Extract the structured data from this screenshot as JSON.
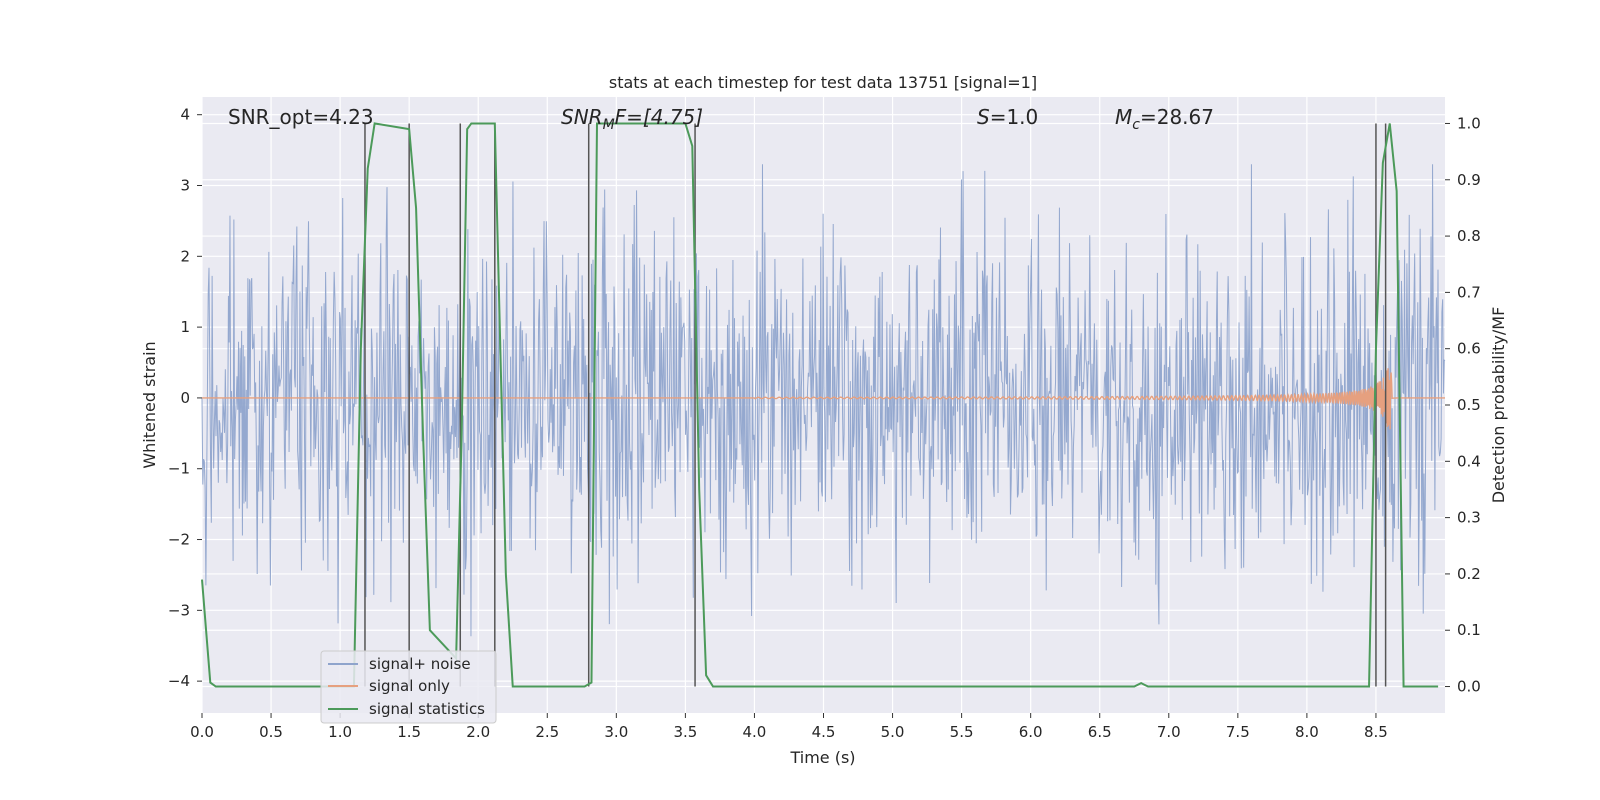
{
  "chart_data": {
    "type": "line",
    "title": "stats at each timestep for test data 13751 [signal=1]",
    "xlabel": "Time (s)",
    "ylabel": "Whitened strain",
    "y2label": "Detection probability/MF",
    "xlim": [
      0.0,
      9.0
    ],
    "ylim": [
      -4.45,
      4.25
    ],
    "y2lim": [
      -0.047,
      1.047
    ],
    "xticks": [
      "0.0",
      "0.5",
      "1.0",
      "1.5",
      "2.0",
      "2.5",
      "3.0",
      "3.5",
      "4.0",
      "4.5",
      "5.0",
      "5.5",
      "6.0",
      "6.5",
      "7.0",
      "7.5",
      "8.0",
      "8.5"
    ],
    "yticks": [
      "4",
      "3",
      "2",
      "1",
      "0",
      "−1",
      "−2",
      "−3",
      "−4"
    ],
    "y2ticks": [
      "1.0",
      "0.9",
      "0.8",
      "0.7",
      "0.6",
      "0.5",
      "0.4",
      "0.3",
      "0.2",
      "0.1",
      "0.0"
    ],
    "grid": true,
    "legend_position": "lower-left",
    "annotations": {
      "snr_opt": "SNR_opt=4.23",
      "snr_mf_main": "SNR",
      "snr_mf_sub": "M",
      "snr_mf_rest": "F=[4.75]",
      "s_italic": "S",
      "s_rest": "=1.0",
      "mc_main": "M",
      "mc_sub": "c",
      "mc_rest": "=28.67"
    },
    "series": [
      {
        "name": "signal+ noise",
        "color": "#8fa4cc",
        "description_range": [
          -3.6,
          3.3
        ]
      },
      {
        "name": "signal only",
        "color": "#e6a07f",
        "chirp": {
          "start_time": 4.0,
          "merger_time": 8.6,
          "peak_amplitude": 0.85
        }
      },
      {
        "name": "signal statistics",
        "color": "#4c9a5a",
        "x": [
          0.0,
          0.06,
          0.1,
          0.15,
          1.1,
          1.15,
          1.2,
          1.25,
          1.5,
          1.55,
          1.6,
          1.65,
          1.84,
          1.88,
          1.92,
          1.95,
          2.12,
          2.16,
          2.2,
          2.25,
          2.77,
          2.82,
          2.86,
          2.9,
          3.5,
          3.55,
          3.6,
          3.65,
          3.7,
          6.75,
          6.8,
          6.85,
          8.45,
          8.5,
          8.55,
          8.6,
          8.65,
          8.7,
          8.95
        ],
        "y": [
          0.19,
          0.007,
          0.0,
          0.0,
          0.0,
          0.6,
          0.92,
          1.0,
          0.99,
          0.85,
          0.45,
          0.1,
          0.05,
          0.45,
          0.99,
          1.0,
          1.0,
          0.6,
          0.2,
          0.0,
          0.0,
          0.007,
          1.0,
          1.0,
          1.0,
          0.96,
          0.35,
          0.02,
          0.0,
          0.0,
          0.006,
          0.0,
          0.0,
          0.6,
          0.93,
          1.0,
          0.88,
          0.0,
          0.0
        ]
      }
    ],
    "vertical_markers": [
      1.18,
      1.5,
      1.87,
      2.12,
      2.8,
      3.57,
      8.5,
      8.57
    ],
    "marker_color": "#555555"
  },
  "colors": {
    "plot_background": "#eaeaf2",
    "grid": "#ffffff"
  }
}
